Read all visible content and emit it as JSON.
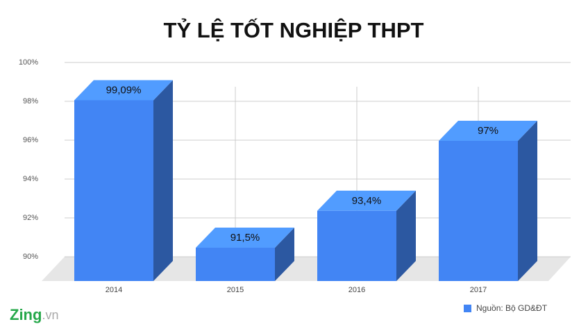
{
  "chart_data": {
    "type": "bar3d",
    "title": "TỶ LỆ TỐT NGHIỆP THPT",
    "categories": [
      "2014",
      "2015",
      "2016",
      "2017"
    ],
    "series": [
      {
        "name": "Nguồn: Bộ GD&ĐT",
        "color": "#4285f4",
        "values": [
          99.09,
          91.5,
          93.4,
          97
        ],
        "value_labels": [
          "99,09%",
          "91,5%",
          "93,4%",
          "97%"
        ]
      }
    ],
    "ylim": [
      90,
      100
    ],
    "yticks": [
      {
        "value": 90,
        "label": "90%"
      },
      {
        "value": 92,
        "label": "92%"
      },
      {
        "value": 94,
        "label": "94%"
      },
      {
        "value": 96,
        "label": "96%"
      },
      {
        "value": 98,
        "label": "98%"
      },
      {
        "value": 100,
        "label": "100%"
      }
    ],
    "grid": true,
    "legend": "bottom-right"
  },
  "logo": {
    "brand": "Zing",
    "suffix": ".vn"
  }
}
